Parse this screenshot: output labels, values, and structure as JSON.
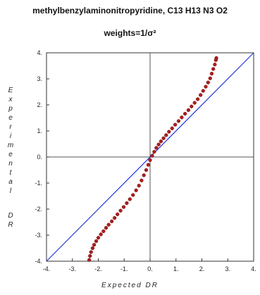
{
  "chart_data": {
    "type": "scatter",
    "title": "methylbenzylaminonitropyridine, C13 H13 N3 O2",
    "subtitle": "weights=1/σ²",
    "xlabel": "Expected DR",
    "ylabel": "Experimental DR",
    "xlim": [
      -4,
      4
    ],
    "ylim": [
      -4,
      4
    ],
    "x_ticks": [
      "-4.",
      "-3.",
      "-2.",
      "-1.",
      "0.",
      "1.",
      "2.",
      "3.",
      "4."
    ],
    "y_ticks": [
      "-4.",
      "-3.",
      "-2.",
      "-1.",
      "0.",
      "1.",
      "2.",
      "3.",
      "4."
    ],
    "reference_line": {
      "from": [
        -4,
        -4
      ],
      "to": [
        4,
        4
      ]
    },
    "marker_color": "#aa1f1f",
    "line_color": "#2233dd",
    "points": [
      [
        -2.35,
        -3.95
      ],
      [
        -2.32,
        -3.8
      ],
      [
        -2.28,
        -3.65
      ],
      [
        -2.22,
        -3.5
      ],
      [
        -2.16,
        -3.37
      ],
      [
        -2.08,
        -3.23
      ],
      [
        -2.0,
        -3.1
      ],
      [
        -1.9,
        -2.97
      ],
      [
        -1.8,
        -2.85
      ],
      [
        -1.7,
        -2.72
      ],
      [
        -1.6,
        -2.6
      ],
      [
        -1.48,
        -2.47
      ],
      [
        -1.37,
        -2.34
      ],
      [
        -1.26,
        -2.2
      ],
      [
        -1.14,
        -2.06
      ],
      [
        -1.02,
        -1.92
      ],
      [
        -0.9,
        -1.77
      ],
      [
        -0.78,
        -1.62
      ],
      [
        -0.66,
        -1.46
      ],
      [
        -0.54,
        -1.28
      ],
      [
        -0.43,
        -1.1
      ],
      [
        -0.33,
        -0.9
      ],
      [
        -0.24,
        -0.7
      ],
      [
        -0.15,
        -0.5
      ],
      [
        -0.07,
        -0.3
      ],
      [
        0.0,
        -0.12
      ],
      [
        0.08,
        0.05
      ],
      [
        0.16,
        0.2
      ],
      [
        0.24,
        0.35
      ],
      [
        0.33,
        0.48
      ],
      [
        0.42,
        0.6
      ],
      [
        0.52,
        0.72
      ],
      [
        0.62,
        0.84
      ],
      [
        0.73,
        0.97
      ],
      [
        0.85,
        1.1
      ],
      [
        0.97,
        1.24
      ],
      [
        1.1,
        1.38
      ],
      [
        1.22,
        1.52
      ],
      [
        1.35,
        1.66
      ],
      [
        1.48,
        1.8
      ],
      [
        1.6,
        1.94
      ],
      [
        1.72,
        2.08
      ],
      [
        1.84,
        2.22
      ],
      [
        1.95,
        2.38
      ],
      [
        2.05,
        2.54
      ],
      [
        2.15,
        2.7
      ],
      [
        2.24,
        2.86
      ],
      [
        2.32,
        3.02
      ],
      [
        2.38,
        3.2
      ],
      [
        2.44,
        3.38
      ],
      [
        2.5,
        3.55
      ],
      [
        2.54,
        3.72
      ],
      [
        2.56,
        3.8
      ]
    ]
  }
}
